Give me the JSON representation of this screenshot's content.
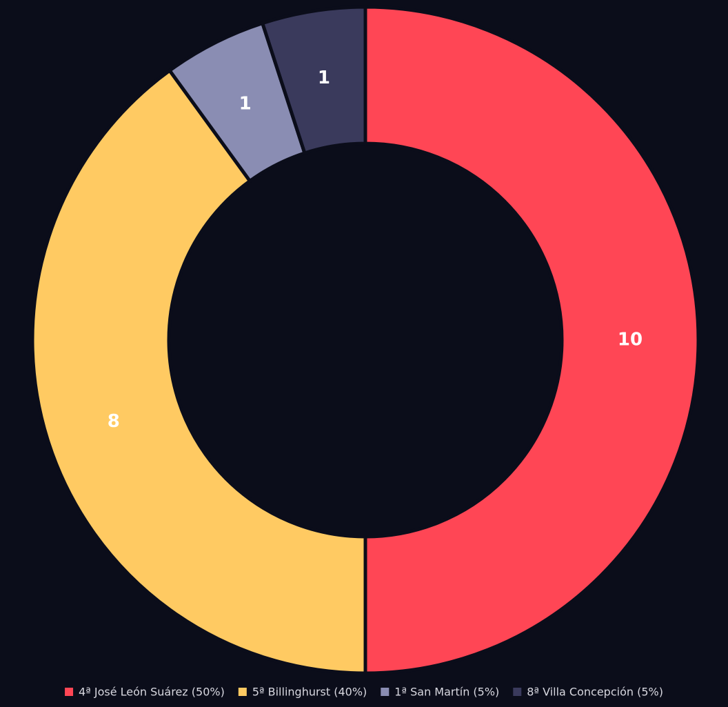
{
  "chart_data": {
    "type": "donut",
    "categories": [
      "4ª José León Suárez (50%)",
      "5ª Billinghurst (40%)",
      "1ª San Martín (5%)",
      "8ª Villa Concepción (5%)"
    ],
    "values": [
      10,
      8,
      1,
      1
    ],
    "colors": [
      "#ff4655",
      "#ffca62",
      "#8a8db3",
      "#3a3a5c"
    ],
    "legend": "bottom"
  }
}
